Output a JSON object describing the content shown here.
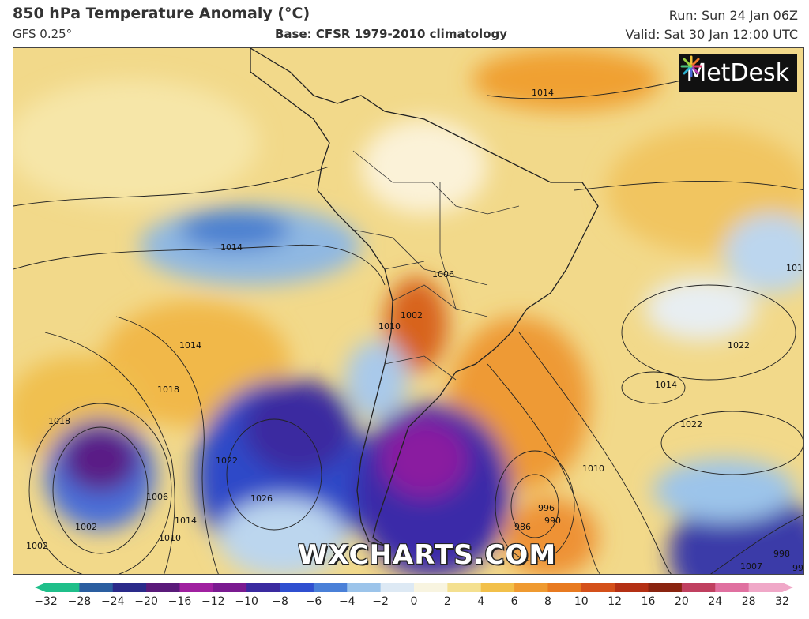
{
  "header": {
    "title": "850 hPa Temperature Anomaly (°C)",
    "model": "GFS 0.25°",
    "base": "Base: CFSR 1979-2010 climatology",
    "run": "Run: Sun 24 Jan 06Z",
    "valid": "Valid: Sat 30 Jan 12:00 UTC"
  },
  "branding": {
    "logo_text": "MetDesk",
    "watermark": "WXCHARTS.COM"
  },
  "map": {
    "region": "South America",
    "isobar_labels": [
      "1014",
      "1014",
      "1018",
      "1018",
      "1002",
      "1006",
      "1014",
      "1010",
      "1002",
      "1022",
      "1026",
      "1010",
      "1002",
      "1006",
      "996",
      "990",
      "986",
      "1010",
      "1014",
      "1022",
      "1022",
      "1014",
      "1007",
      "998",
      "99",
      "101"
    ]
  },
  "colorbar": {
    "labels": [
      "−32",
      "−28",
      "−24",
      "−20",
      "−16",
      "−12",
      "−10",
      "−8",
      "−6",
      "−4",
      "−2",
      "0",
      "2",
      "4",
      "6",
      "8",
      "10",
      "12",
      "16",
      "20",
      "24",
      "28",
      "32"
    ],
    "colors": [
      "#1fbf8a",
      "#2a5ea0",
      "#2a2a8a",
      "#5a1a7a",
      "#a020a0",
      "#7a1a90",
      "#3a2aa0",
      "#2f4fd0",
      "#4a80d8",
      "#9cc4ea",
      "#dde9f4",
      "#f8f4e0",
      "#f4e090",
      "#f2c04a",
      "#ef9a30",
      "#e87a20",
      "#d4501a",
      "#b43014",
      "#8a2410",
      "#c04060",
      "#e070a0",
      "#f0a8c8"
    ]
  }
}
